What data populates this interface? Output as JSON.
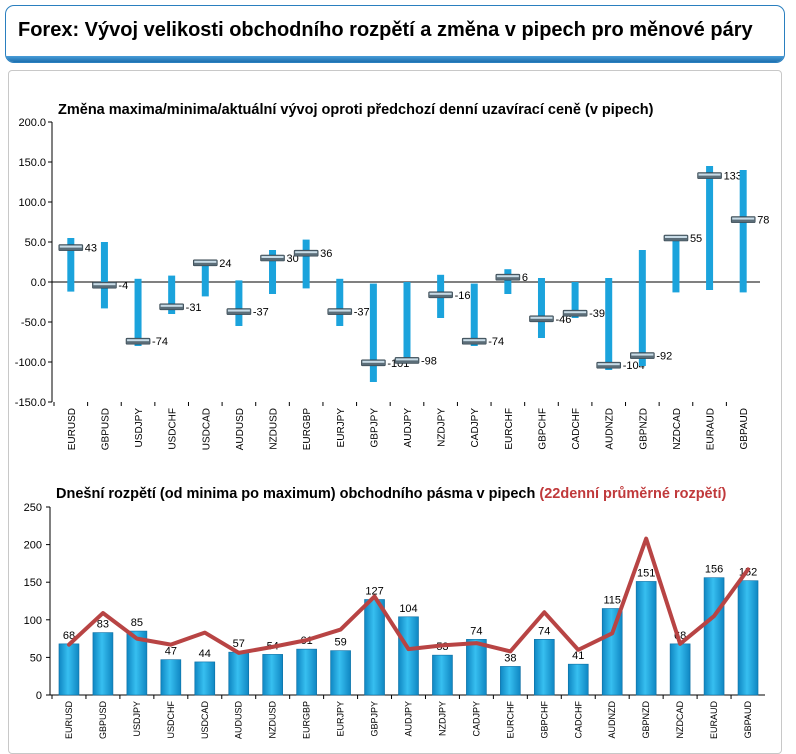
{
  "header": {
    "title": "Forex: Vývoj velikosti obchodního rozpětí a změna v pipech pro měnové páry"
  },
  "colors": {
    "accent_blue": "#1a9bd7",
    "bar_blue": "#1ba3dc",
    "avg_line_red": "#b84444",
    "header_border": "#2a7fbf"
  },
  "chart_data": [
    {
      "type": "bar",
      "subtype": "range-with-marker",
      "title": "Změna maxima/minima/aktuální vývoj oproti předchozí denní uzavírací ceně (v pipech)",
      "ylim": [
        -150,
        200
      ],
      "yticks": [
        "-150.0",
        "-100.0",
        "-50.0",
        "0.0",
        "50.0",
        "100.0",
        "150.0",
        "200.0"
      ],
      "grid": false,
      "categories": [
        "EURUSD",
        "GBPUSD",
        "USDJPY",
        "USDCHF",
        "USDCAD",
        "AUDUSD",
        "NZDUSD",
        "EURGBP",
        "EURJPY",
        "GBPJPY",
        "AUDJPY",
        "NZDJPY",
        "CADJPY",
        "EURCHF",
        "GBPCHF",
        "CADCHF",
        "AUDNZD",
        "GBPNZD",
        "NZDCAD",
        "EURAUD",
        "GBPAUD"
      ],
      "high": [
        55,
        50,
        4,
        8,
        27,
        2,
        40,
        53,
        4,
        -2,
        0,
        9,
        -2,
        16,
        5,
        0,
        5,
        40,
        58,
        145,
        140
      ],
      "low": [
        -12,
        -33,
        -80,
        -40,
        -18,
        -55,
        -15,
        -8,
        -55,
        -125,
        -100,
        -45,
        -80,
        -15,
        -70,
        -45,
        -110,
        -105,
        -13,
        -10,
        -13
      ],
      "current": [
        43,
        -4,
        -74,
        -31,
        24,
        -37,
        30,
        36,
        -37,
        -101,
        -98,
        -16,
        -74,
        6,
        -46,
        -39,
        -104,
        -92,
        55,
        133,
        78
      ],
      "labels": [
        "43",
        "-4",
        "-74",
        "-31",
        "24",
        "-37",
        "30",
        "36",
        "-37",
        "-101",
        "-98",
        "-16",
        "-74",
        "6",
        "-46",
        "-39",
        "-104",
        "-92",
        "55",
        "133",
        "78"
      ]
    },
    {
      "type": "bar",
      "title": "Dnešní rozpětí (od minima po maximum) obchodního pásma v pipech",
      "title_highlight": "(22denní průměrné rozpětí)",
      "ylim": [
        0,
        250
      ],
      "yticks": [
        "0",
        "50",
        "100",
        "150",
        "200",
        "250"
      ],
      "grid": false,
      "categories": [
        "EURUSD",
        "GBPUSD",
        "USDJPY",
        "USDCHF",
        "USDCAD",
        "AUDUSD",
        "NZDUSD",
        "EURGBP",
        "EURJPY",
        "GBPJPY",
        "AUDJPY",
        "NZDJPY",
        "CADJPY",
        "EURCHF",
        "GBPCHF",
        "CADCHF",
        "AUDNZD",
        "GBPNZD",
        "NZDCAD",
        "EURAUD",
        "GBPAUD"
      ],
      "series": [
        {
          "type": "bar",
          "values": [
            68,
            83,
            85,
            47,
            44,
            57,
            54,
            61,
            59,
            127,
            104,
            53,
            74,
            38,
            74,
            41,
            115,
            151,
            68,
            156,
            152
          ],
          "labels": [
            "68",
            "83",
            "85",
            "47",
            "44",
            "57",
            "54",
            "61",
            "59",
            "127",
            "104",
            "53",
            "74",
            "38",
            "74",
            "41",
            "115",
            "151",
            "68",
            "156",
            "152"
          ]
        },
        {
          "type": "line",
          "values": [
            67,
            109,
            75,
            67,
            83,
            56,
            64,
            73,
            87,
            131,
            61,
            66,
            69,
            58,
            110,
            60,
            82,
            208,
            68,
            105,
            167
          ]
        }
      ]
    }
  ]
}
